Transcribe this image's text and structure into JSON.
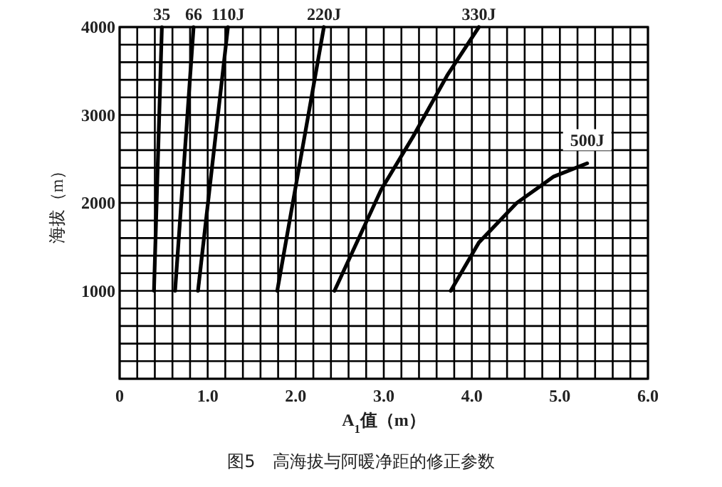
{
  "chart_data": {
    "type": "line",
    "xlabel": "A$_{1}$值（m）",
    "ylabel": "海拔（m）",
    "annotations": [
      "图5　高海拔与阿暖净距的修正参数"
    ],
    "xlim": [
      0,
      6
    ],
    "ylim": [
      0,
      4000
    ],
    "xticks": [
      0,
      {
        "value": 0.2,
        "label": null
      },
      {
        "value": 0.4,
        "label": null
      },
      {
        "value": 0.6,
        "label": null
      },
      {
        "value": 0.8,
        "label": null
      },
      {
        "value": 1,
        "label": "1.0"
      },
      {
        "value": 1.2,
        "label": null
      },
      {
        "value": 1.4,
        "label": null
      },
      {
        "value": 1.6,
        "label": null
      },
      {
        "value": 1.8,
        "label": null
      },
      {
        "value": 2,
        "label": "2.0"
      },
      {
        "value": 2.2,
        "label": null
      },
      {
        "value": 2.4,
        "label": null
      },
      {
        "value": 2.6,
        "label": null
      },
      {
        "value": 2.8,
        "label": null
      },
      {
        "value": 3,
        "label": "3.0"
      },
      {
        "value": 3.2,
        "label": null
      },
      {
        "value": 3.4,
        "label": null
      },
      {
        "value": 3.6,
        "label": null
      },
      {
        "value": 3.8,
        "label": null
      },
      {
        "value": 4,
        "label": "4.0"
      },
      {
        "value": 4.2,
        "label": null
      },
      {
        "value": 4.4,
        "label": null
      },
      {
        "value": 4.6,
        "label": null
      },
      {
        "value": 4.8,
        "label": null
      },
      {
        "value": 5,
        "label": "5.0"
      },
      {
        "value": 5.2,
        "label": null
      },
      {
        "value": 5.4,
        "label": null
      },
      {
        "value": 5.6,
        "label": null
      },
      {
        "value": 5.8,
        "label": null
      },
      {
        "value": 6,
        "label": "6.0"
      }
    ],
    "yticks": [
      {
        "value": 0,
        "label": null
      },
      {
        "value": 200,
        "label": null
      },
      {
        "value": 400,
        "label": null
      },
      {
        "value": 600,
        "label": null
      },
      {
        "value": 800,
        "label": null
      },
      1000,
      {
        "value": 1200,
        "label": null
      },
      {
        "value": 1400,
        "label": null
      },
      {
        "value": 1600,
        "label": null
      },
      {
        "value": 1800,
        "label": null
      },
      2000,
      {
        "value": 2200,
        "label": null
      },
      {
        "value": 2400,
        "label": null
      },
      {
        "value": 2600,
        "label": null
      },
      {
        "value": 2800,
        "label": null
      },
      3000,
      {
        "value": 3200,
        "label": null
      },
      {
        "value": 3400,
        "label": null
      },
      {
        "value": 3600,
        "label": null
      },
      {
        "value": 3800,
        "label": null
      },
      4000
    ],
    "grid": true,
    "marker": "none",
    "line_style": "solid",
    "series": [
      {
        "name": "35",
        "color": "#000000",
        "x": [
          0.39,
          0.48
        ],
        "values": [
          1000,
          4000
        ]
      },
      {
        "name": "66",
        "color": "#000000",
        "x": [
          0.63,
          0.84
        ],
        "values": [
          1000,
          4000
        ]
      },
      {
        "name": "110J",
        "color": "#000000",
        "x": [
          0.89,
          1.23
        ],
        "values": [
          1000,
          4000
        ]
      },
      {
        "name": "220J",
        "color": "#000000",
        "x": [
          1.79,
          2.32
        ],
        "values": [
          1000,
          4000
        ]
      },
      {
        "name": "330J",
        "color": "#000000",
        "x": [
          2.44,
          2.97,
          3.33,
          3.72,
          4.08
        ],
        "values": [
          1000,
          2150,
          2750,
          3450,
          4000
        ]
      },
      {
        "name": "500J",
        "color": "#000000",
        "x": [
          3.76,
          4.08,
          4.51,
          4.93,
          5.31
        ],
        "values": [
          1000,
          1550,
          2000,
          2300,
          2450
        ]
      }
    ]
  }
}
